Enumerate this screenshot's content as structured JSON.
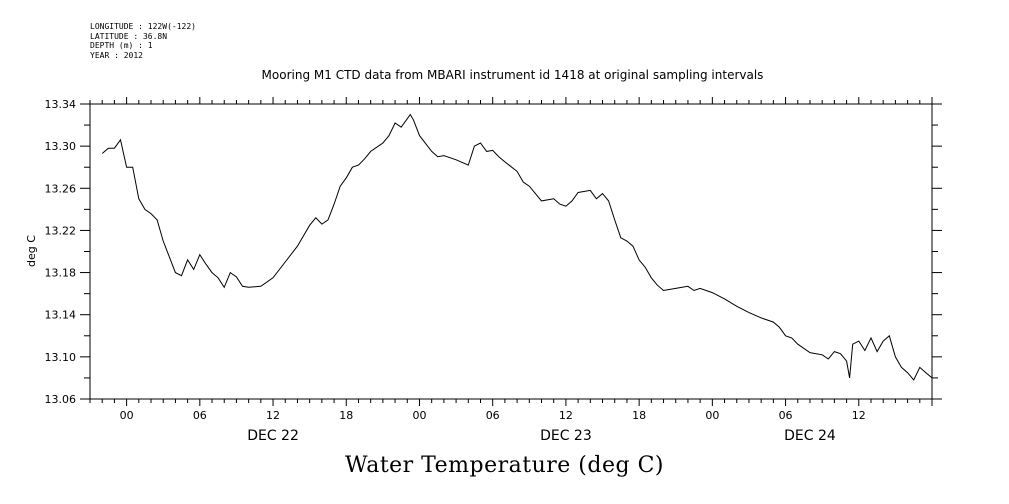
{
  "metadata": [
    "LONGITUDE : 122W(-122)",
    "LATITUDE : 36.8N",
    "DEPTH (m) : 1",
    "YEAR : 2012"
  ],
  "chart_data": {
    "type": "line",
    "title": "Mooring M1 CTD data from MBARI instrument id 1418 at original sampling intervals",
    "bottom_title": "Water Temperature (deg C)",
    "ylabel": "deg C",
    "ylim": [
      13.06,
      13.34
    ],
    "y_ticks": [
      "13.06",
      "13.10",
      "13.14",
      "13.18",
      "13.22",
      "13.26",
      "13.30",
      "13.34"
    ],
    "xlim": [
      "2012-12-21T21:00",
      "2012-12-24T18:00"
    ],
    "x_tick_labels": [
      {
        "label": "00",
        "time": "2012-12-22T00:00"
      },
      {
        "label": "06",
        "time": "2012-12-22T06:00"
      },
      {
        "label": "12",
        "time": "2012-12-22T12:00"
      },
      {
        "label": "18",
        "time": "2012-12-22T18:00"
      },
      {
        "label": "00",
        "time": "2012-12-23T00:00"
      },
      {
        "label": "06",
        "time": "2012-12-23T06:00"
      },
      {
        "label": "12",
        "time": "2012-12-23T12:00"
      },
      {
        "label": "18",
        "time": "2012-12-23T18:00"
      },
      {
        "label": "00",
        "time": "2012-12-24T00:00"
      },
      {
        "label": "06",
        "time": "2012-12-24T06:00"
      },
      {
        "label": "12",
        "time": "2012-12-24T12:00"
      }
    ],
    "date_labels": [
      {
        "label": "DEC 22",
        "time": "2012-12-22T12:00"
      },
      {
        "label": "DEC 23",
        "time": "2012-12-23T12:00"
      },
      {
        "label": "DEC 24",
        "time": "2012-12-24T08:00"
      }
    ],
    "grid": false,
    "series": [
      {
        "points": [
          [
            "2012-12-21T22:00",
            13.293
          ],
          [
            "2012-12-21T22:30",
            13.298
          ],
          [
            "2012-12-21T23:00",
            13.298
          ],
          [
            "2012-12-21T23:30",
            13.306
          ],
          [
            "2012-12-22T00:00",
            13.28
          ],
          [
            "2012-12-22T00:30",
            13.28
          ],
          [
            "2012-12-22T01:00",
            13.25
          ],
          [
            "2012-12-22T01:30",
            13.24
          ],
          [
            "2012-12-22T02:00",
            13.236
          ],
          [
            "2012-12-22T02:30",
            13.23
          ],
          [
            "2012-12-22T03:00",
            13.21
          ],
          [
            "2012-12-22T03:30",
            13.195
          ],
          [
            "2012-12-22T04:00",
            13.18
          ],
          [
            "2012-12-22T04:30",
            13.177
          ],
          [
            "2012-12-22T05:00",
            13.192
          ],
          [
            "2012-12-22T05:30",
            13.183
          ],
          [
            "2012-12-22T06:00",
            13.197
          ],
          [
            "2012-12-22T06:30",
            13.188
          ],
          [
            "2012-12-22T07:00",
            13.18
          ],
          [
            "2012-12-22T07:30",
            13.175
          ],
          [
            "2012-12-22T08:00",
            13.166
          ],
          [
            "2012-12-22T08:30",
            13.18
          ],
          [
            "2012-12-22T09:00",
            13.176
          ],
          [
            "2012-12-22T09:30",
            13.167
          ],
          [
            "2012-12-22T10:00",
            13.166
          ],
          [
            "2012-12-22T11:00",
            13.167
          ],
          [
            "2012-12-22T12:00",
            13.175
          ],
          [
            "2012-12-22T13:00",
            13.19
          ],
          [
            "2012-12-22T14:00",
            13.205
          ],
          [
            "2012-12-22T15:00",
            13.225
          ],
          [
            "2012-12-22T15:30",
            13.232
          ],
          [
            "2012-12-22T16:00",
            13.226
          ],
          [
            "2012-12-22T16:30",
            13.23
          ],
          [
            "2012-12-22T17:00",
            13.245
          ],
          [
            "2012-12-22T17:30",
            13.262
          ],
          [
            "2012-12-22T18:00",
            13.27
          ],
          [
            "2012-12-22T18:30",
            13.28
          ],
          [
            "2012-12-22T19:00",
            13.282
          ],
          [
            "2012-12-22T19:30",
            13.288
          ],
          [
            "2012-12-22T20:00",
            13.295
          ],
          [
            "2012-12-22T21:00",
            13.303
          ],
          [
            "2012-12-22T21:30",
            13.31
          ],
          [
            "2012-12-22T22:00",
            13.322
          ],
          [
            "2012-12-22T22:30",
            13.318
          ],
          [
            "2012-12-22T23:00",
            13.326
          ],
          [
            "2012-12-22T23:15",
            13.33
          ],
          [
            "2012-12-22T23:30",
            13.325
          ],
          [
            "2012-12-23T00:00",
            13.31
          ],
          [
            "2012-12-23T01:00",
            13.295
          ],
          [
            "2012-12-23T01:30",
            13.29
          ],
          [
            "2012-12-23T02:00",
            13.291
          ],
          [
            "2012-12-23T02:30",
            13.289
          ],
          [
            "2012-12-23T03:00",
            13.287
          ],
          [
            "2012-12-23T04:00",
            13.282
          ],
          [
            "2012-12-23T04:30",
            13.3
          ],
          [
            "2012-12-23T05:00",
            13.303
          ],
          [
            "2012-12-23T05:30",
            13.295
          ],
          [
            "2012-12-23T06:00",
            13.296
          ],
          [
            "2012-12-23T06:30",
            13.29
          ],
          [
            "2012-12-23T07:00",
            13.285
          ],
          [
            "2012-12-23T08:00",
            13.276
          ],
          [
            "2012-12-23T08:30",
            13.266
          ],
          [
            "2012-12-23T09:00",
            13.262
          ],
          [
            "2012-12-23T09:30",
            13.255
          ],
          [
            "2012-12-23T10:00",
            13.248
          ],
          [
            "2012-12-23T11:00",
            13.25
          ],
          [
            "2012-12-23T11:30",
            13.245
          ],
          [
            "2012-12-23T12:00",
            13.243
          ],
          [
            "2012-12-23T12:30",
            13.248
          ],
          [
            "2012-12-23T13:00",
            13.256
          ],
          [
            "2012-12-23T14:00",
            13.258
          ],
          [
            "2012-12-23T14:30",
            13.25
          ],
          [
            "2012-12-23T15:00",
            13.255
          ],
          [
            "2012-12-23T15:30",
            13.248
          ],
          [
            "2012-12-23T16:00",
            13.23
          ],
          [
            "2012-12-23T16:30",
            13.213
          ],
          [
            "2012-12-23T17:00",
            13.21
          ],
          [
            "2012-12-23T17:30",
            13.205
          ],
          [
            "2012-12-23T18:00",
            13.192
          ],
          [
            "2012-12-23T18:30",
            13.185
          ],
          [
            "2012-12-23T19:00",
            13.175
          ],
          [
            "2012-12-23T19:30",
            13.168
          ],
          [
            "2012-12-23T20:00",
            13.163
          ],
          [
            "2012-12-23T21:00",
            13.165
          ],
          [
            "2012-12-23T22:00",
            13.167
          ],
          [
            "2012-12-23T22:30",
            13.163
          ],
          [
            "2012-12-23T23:00",
            13.165
          ],
          [
            "2012-12-24T00:00",
            13.161
          ],
          [
            "2012-12-24T01:00",
            13.155
          ],
          [
            "2012-12-24T02:00",
            13.148
          ],
          [
            "2012-12-24T03:00",
            13.142
          ],
          [
            "2012-12-24T04:00",
            13.137
          ],
          [
            "2012-12-24T05:00",
            13.133
          ],
          [
            "2012-12-24T05:30",
            13.128
          ],
          [
            "2012-12-24T06:00",
            13.12
          ],
          [
            "2012-12-24T06:30",
            13.118
          ],
          [
            "2012-12-24T07:00",
            13.112
          ],
          [
            "2012-12-24T08:00",
            13.104
          ],
          [
            "2012-12-24T09:00",
            13.102
          ],
          [
            "2012-12-24T09:30",
            13.098
          ],
          [
            "2012-12-24T10:00",
            13.105
          ],
          [
            "2012-12-24T10:30",
            13.103
          ],
          [
            "2012-12-24T11:00",
            13.096
          ],
          [
            "2012-12-24T11:15",
            13.08
          ],
          [
            "2012-12-24T11:30",
            13.112
          ],
          [
            "2012-12-24T12:00",
            13.115
          ],
          [
            "2012-12-24T12:30",
            13.106
          ],
          [
            "2012-12-24T13:00",
            13.118
          ],
          [
            "2012-12-24T13:30",
            13.105
          ],
          [
            "2012-12-24T14:00",
            13.115
          ],
          [
            "2012-12-24T14:30",
            13.12
          ],
          [
            "2012-12-24T15:00",
            13.1
          ],
          [
            "2012-12-24T15:30",
            13.09
          ],
          [
            "2012-12-24T16:00",
            13.085
          ],
          [
            "2012-12-24T16:30",
            13.078
          ],
          [
            "2012-12-24T17:00",
            13.09
          ],
          [
            "2012-12-24T17:30",
            13.085
          ],
          [
            "2012-12-24T18:00",
            13.08
          ]
        ]
      }
    ]
  }
}
